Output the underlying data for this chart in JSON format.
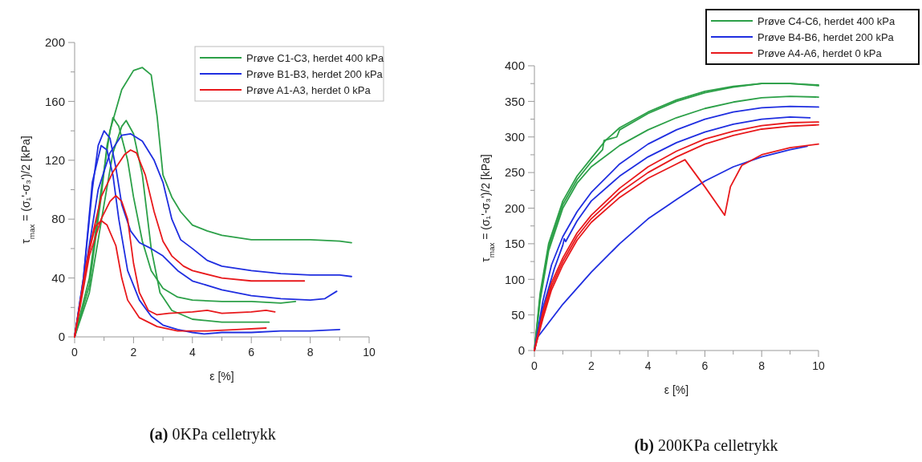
{
  "chart_data": [
    {
      "type": "line",
      "title": "(a) 0KPa celletrykk",
      "xlabel": "ε [%]",
      "ylabel": "τ$_{max}$ = (σ₁'-σ₃')/2 [kPa]",
      "xlim": [
        0,
        10
      ],
      "ylim": [
        0,
        200
      ],
      "xticks": [
        0,
        {
          "value": 1,
          "label": null
        },
        2,
        {
          "value": 3,
          "label": null
        },
        4,
        {
          "value": 5,
          "label": null
        },
        6,
        {
          "value": 7,
          "label": null
        },
        8,
        {
          "value": 9,
          "label": null
        },
        10
      ],
      "yticks": [
        0,
        {
          "value": 20,
          "label": null
        },
        40,
        {
          "value": 60,
          "label": null
        },
        80,
        {
          "value": 100,
          "label": null
        },
        120,
        {
          "value": 140,
          "label": null
        },
        160,
        {
          "value": 180,
          "label": null
        },
        200
      ],
      "grid": false,
      "legend": "top right",
      "marker": "none",
      "line_style": "solid",
      "series": [
        {
          "name": "Prøve C1-C3, herdet 400 kPa",
          "color": "#2ca048",
          "x": [
            0,
            0.5,
            0.9,
            1.2,
            1.6,
            2.0,
            2.3,
            2.6,
            2.8,
            3.0,
            3.3,
            3.6,
            4,
            4.5,
            5,
            6,
            7,
            8,
            9,
            9.4
          ],
          "values": [
            0,
            40,
            100,
            140,
            168,
            181,
            183,
            178,
            150,
            110,
            95,
            85,
            76,
            72,
            69,
            66,
            66,
            66,
            65,
            64
          ]
        },
        {
          "color": "#2ca048",
          "x": [
            0,
            0.5,
            0.9,
            1.1,
            1.3,
            1.5,
            1.8,
            2.0,
            2.3,
            2.6,
            3,
            3.5,
            4,
            5,
            6,
            7,
            7.5
          ],
          "values": [
            0,
            35,
            95,
            130,
            149,
            143,
            120,
            95,
            65,
            45,
            33,
            27,
            25,
            24,
            24,
            23,
            24
          ]
        },
        {
          "color": "#2ca048",
          "x": [
            0,
            0.5,
            1.0,
            1.3,
            1.6,
            1.75,
            2.0,
            2.3,
            2.6,
            2.9,
            3.3,
            4,
            5,
            6,
            6.6
          ],
          "values": [
            0,
            30,
            90,
            125,
            143,
            147,
            138,
            110,
            60,
            30,
            18,
            12,
            10,
            10,
            10
          ]
        },
        {
          "name": "Prøve B1-B3, herdet 200 kPa",
          "color": "#1f2ee0",
          "x": [
            0,
            0.3,
            0.6,
            0.8,
            1.0,
            1.2,
            1.4,
            1.6,
            1.9,
            2.2,
            2.6,
            3,
            3.5,
            4,
            5,
            6,
            7,
            8,
            8.5,
            8.9
          ],
          "values": [
            0,
            40,
            100,
            130,
            140,
            135,
            115,
            90,
            72,
            64,
            60,
            55,
            45,
            38,
            32,
            28,
            26,
            25,
            26,
            31
          ]
        },
        {
          "color": "#1f2ee0",
          "x": [
            0,
            0.3,
            0.6,
            0.9,
            1.1,
            1.3,
            1.5,
            1.8,
            2.2,
            2.6,
            3,
            3.5,
            4,
            4.4,
            5,
            6,
            7,
            8,
            9
          ],
          "values": [
            0,
            40,
            105,
            130,
            127,
            110,
            80,
            45,
            25,
            14,
            8,
            5,
            3,
            2,
            3,
            3,
            4,
            4,
            5
          ]
        },
        {
          "color": "#1f2ee0",
          "x": [
            0,
            0.4,
            0.8,
            1.2,
            1.6,
            1.9,
            2.3,
            2.7,
            3,
            3.3,
            3.6,
            4,
            4.5,
            5,
            6,
            7,
            8,
            9,
            9.4
          ],
          "values": [
            0,
            50,
            100,
            125,
            137,
            138,
            133,
            120,
            105,
            80,
            66,
            60,
            52,
            48,
            45,
            43,
            42,
            42,
            41
          ]
        },
        {
          "name": "Prøve A1-A3, herdet 0 kPa",
          "color": "#e8191c",
          "x": [
            0,
            0.5,
            0.9,
            1.3,
            1.7,
            1.9,
            2.1,
            2.4,
            2.7,
            3,
            3.3,
            3.7,
            4,
            5,
            6,
            7,
            7.8
          ],
          "values": [
            0,
            60,
            95,
            112,
            124,
            127,
            125,
            110,
            85,
            65,
            55,
            48,
            45,
            40,
            38,
            38,
            38
          ]
        },
        {
          "color": "#e8191c",
          "x": [
            0,
            0.5,
            0.9,
            1.2,
            1.4,
            1.6,
            1.8,
            2.0,
            2.2,
            2.5,
            2.8,
            3.2,
            4,
            4.5,
            5,
            6,
            6.5,
            6.8
          ],
          "values": [
            0,
            55,
            80,
            92,
            96,
            92,
            80,
            50,
            30,
            18,
            15,
            16,
            17,
            18,
            16,
            17,
            18,
            17
          ]
        },
        {
          "color": "#e8191c",
          "x": [
            0,
            0.4,
            0.7,
            0.9,
            1.1,
            1.4,
            1.6,
            1.8,
            2.2,
            2.8,
            3.5,
            4.5,
            5.5,
            6.5
          ],
          "values": [
            0,
            50,
            75,
            79,
            76,
            62,
            40,
            25,
            13,
            7,
            4,
            4,
            5,
            6
          ]
        }
      ]
    },
    {
      "type": "line",
      "title": "(b) 200KPa celletrykk",
      "xlabel": "ε [%]",
      "ylabel": "τ$_{max}$ = (σ₁'-σ₃')/2 [kPa]",
      "xlim": [
        0,
        10
      ],
      "ylim": [
        0,
        400
      ],
      "xticks": [
        0,
        {
          "value": 1,
          "label": null
        },
        2,
        {
          "value": 3,
          "label": null
        },
        4,
        {
          "value": 5,
          "label": null
        },
        6,
        {
          "value": 7,
          "label": null
        },
        8,
        {
          "value": 9,
          "label": null
        },
        10
      ],
      "yticks": [
        0,
        {
          "value": 25,
          "label": null
        },
        50,
        {
          "value": 75,
          "label": null
        },
        100,
        {
          "value": 125,
          "label": null
        },
        150,
        {
          "value": 175,
          "label": null
        },
        200,
        {
          "value": 225,
          "label": null
        },
        250,
        {
          "value": 275,
          "label": null
        },
        300,
        {
          "value": 325,
          "label": null
        },
        350,
        {
          "value": 375,
          "label": null
        },
        400
      ],
      "grid": false,
      "legend": "top right",
      "marker": "none",
      "line_style": "solid",
      "series": [
        {
          "name": "Prøve C4-C6, herdet 400 kPa",
          "color": "#2ca048",
          "x": [
            0,
            0.2,
            0.5,
            1,
            1.5,
            2,
            2.5,
            3,
            4,
            5,
            6,
            7,
            8,
            9,
            10
          ],
          "values": [
            0,
            80,
            150,
            210,
            245,
            270,
            295,
            313,
            335,
            352,
            364,
            371,
            375,
            375,
            373
          ]
        },
        {
          "color": "#2ca048",
          "x": [
            0,
            0.2,
            0.5,
            1,
            1.5,
            2,
            2.4,
            2.45,
            2.9,
            3,
            4,
            5,
            6,
            7,
            8,
            9,
            10
          ],
          "values": [
            0,
            75,
            145,
            205,
            240,
            265,
            282,
            295,
            300,
            310,
            333,
            350,
            362,
            370,
            375,
            375,
            372
          ]
        },
        {
          "color": "#2ca048",
          "x": [
            0,
            0.2,
            0.5,
            1,
            1.5,
            2,
            3,
            4,
            5,
            6,
            7,
            8,
            9,
            10
          ],
          "values": [
            0,
            70,
            140,
            200,
            235,
            258,
            288,
            310,
            327,
            340,
            349,
            355,
            357,
            356
          ]
        },
        {
          "name": "Prøve B4-B6, herdet 200 kPa",
          "color": "#1f2ee0",
          "x": [
            0,
            0.3,
            0.6,
            1,
            1.5,
            2,
            3,
            4,
            5,
            6,
            7,
            8,
            9,
            10
          ],
          "values": [
            0,
            70,
            120,
            160,
            195,
            222,
            262,
            290,
            310,
            325,
            335,
            341,
            343,
            342
          ]
        },
        {
          "color": "#1f2ee0",
          "x": [
            0,
            0.3,
            0.7,
            1.0,
            1.05,
            1.1,
            1.5,
            2,
            3,
            4,
            5,
            6,
            7,
            8,
            9,
            9.7
          ],
          "values": [
            0,
            60,
            115,
            148,
            157,
            153,
            182,
            210,
            245,
            272,
            292,
            307,
            318,
            325,
            328,
            327
          ]
        },
        {
          "color": "#1f2ee0",
          "x": [
            0,
            0.1,
            1,
            2,
            3,
            4,
            5,
            6,
            7,
            8,
            9,
            9.6
          ],
          "values": [
            0,
            18,
            65,
            110,
            150,
            185,
            212,
            238,
            258,
            272,
            282,
            287
          ]
        },
        {
          "name": "Prøve A4-A6, herdet 0 kPa",
          "color": "#e8191c",
          "x": [
            0,
            0.3,
            0.6,
            1,
            1.5,
            2,
            3,
            4,
            5,
            6,
            7,
            8,
            9,
            10
          ],
          "values": [
            0,
            55,
            95,
            130,
            165,
            190,
            228,
            258,
            280,
            297,
            308,
            316,
            320,
            321
          ]
        },
        {
          "color": "#e8191c",
          "x": [
            0,
            0.3,
            0.6,
            1,
            1.5,
            2,
            3,
            4,
            5,
            6,
            7,
            8,
            9,
            10
          ],
          "values": [
            0,
            50,
            90,
            125,
            160,
            185,
            222,
            250,
            272,
            290,
            302,
            311,
            315,
            317
          ]
        },
        {
          "color": "#e8191c",
          "x": [
            0,
            0.3,
            0.6,
            1,
            1.5,
            2,
            3,
            4,
            5,
            5.3,
            6,
            6.7,
            6.9,
            7.3,
            8,
            9,
            10
          ],
          "values": [
            0,
            45,
            85,
            120,
            155,
            180,
            215,
            242,
            262,
            268,
            230,
            190,
            230,
            260,
            275,
            285,
            290
          ]
        }
      ]
    }
  ]
}
